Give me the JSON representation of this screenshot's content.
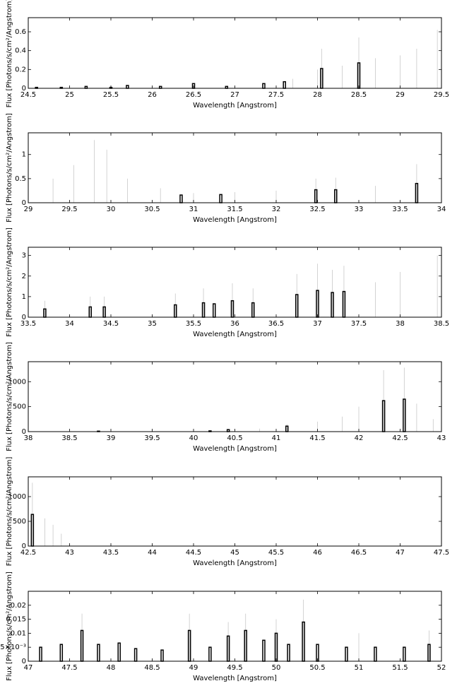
{
  "chart_data": [
    {
      "type": "bar",
      "xlabel": "Wavelength [Angstrom]",
      "ylabel": "Flux [Photons/s/cm²/Angstrom]",
      "xlim": [
        24.5,
        29.5
      ],
      "ylim": [
        0,
        0.75
      ],
      "x_ticks": [
        "24.5",
        "25",
        "25.5",
        "26",
        "26.5",
        "27",
        "27.5",
        "28",
        "28.5",
        "29",
        "29.5"
      ],
      "y_ticks": [
        "0",
        "0.2",
        "0.4",
        "0.6"
      ],
      "bars": [
        {
          "x": 24.6,
          "y": 0.01
        },
        {
          "x": 24.9,
          "y": 0.01
        },
        {
          "x": 25.2,
          "y": 0.02
        },
        {
          "x": 25.5,
          "y": 0.01
        },
        {
          "x": 25.7,
          "y": 0.03
        },
        {
          "x": 26.1,
          "y": 0.02
        },
        {
          "x": 26.5,
          "y": 0.05
        },
        {
          "x": 26.9,
          "y": 0.02
        },
        {
          "x": 27.35,
          "y": 0.05
        },
        {
          "x": 27.6,
          "y": 0.07
        },
        {
          "x": 28.05,
          "y": 0.21
        },
        {
          "x": 28.5,
          "y": 0.27
        }
      ],
      "errors": [
        {
          "x": 27.7,
          "hi": 0.1
        },
        {
          "x": 28.0,
          "hi": 0.2
        },
        {
          "x": 28.05,
          "hi": 0.42
        },
        {
          "x": 28.3,
          "hi": 0.24
        },
        {
          "x": 28.5,
          "hi": 0.54
        },
        {
          "x": 28.7,
          "hi": 0.32
        },
        {
          "x": 29.0,
          "hi": 0.35
        },
        {
          "x": 29.2,
          "hi": 0.42
        },
        {
          "x": 29.45,
          "hi": 0.62
        }
      ]
    },
    {
      "type": "bar",
      "xlabel": "Wavelength [Angstrom]",
      "ylabel": "Flux [Photons/s/cm²/Angstrom]",
      "xlim": [
        29,
        34
      ],
      "ylim": [
        0,
        1.45
      ],
      "x_ticks": [
        "29",
        "29.5",
        "30",
        "30.5",
        "31",
        "31.5",
        "32",
        "32.5",
        "33",
        "33.5",
        "34"
      ],
      "y_ticks": [
        "0",
        "0.5",
        "1"
      ],
      "bars": [
        {
          "x": 30.85,
          "y": 0.16
        },
        {
          "x": 31.33,
          "y": 0.17
        },
        {
          "x": 32.48,
          "y": 0.27
        },
        {
          "x": 32.72,
          "y": 0.27
        },
        {
          "x": 33.7,
          "y": 0.4
        }
      ],
      "errors": [
        {
          "x": 29.0,
          "hi": 0.38
        },
        {
          "x": 29.3,
          "hi": 0.5
        },
        {
          "x": 29.55,
          "hi": 0.78
        },
        {
          "x": 29.8,
          "hi": 1.3
        },
        {
          "x": 29.95,
          "hi": 1.1
        },
        {
          "x": 30.2,
          "hi": 0.5
        },
        {
          "x": 30.6,
          "hi": 0.3
        },
        {
          "x": 31.0,
          "hi": 0.2
        },
        {
          "x": 31.5,
          "hi": 0.22
        },
        {
          "x": 32.0,
          "hi": 0.25
        },
        {
          "x": 32.48,
          "hi": 0.5
        },
        {
          "x": 32.72,
          "hi": 0.52
        },
        {
          "x": 33.2,
          "hi": 0.35
        },
        {
          "x": 33.7,
          "hi": 0.8
        },
        {
          "x": 34.0,
          "hi": 0.42
        }
      ]
    },
    {
      "type": "bar",
      "xlabel": "Wavelength [Angstrom]",
      "ylabel": "Flux [Photons/s/cm²/Angstrom]",
      "xlim": [
        33.5,
        38.5
      ],
      "ylim": [
        0,
        3.4
      ],
      "x_ticks": [
        "33.5",
        "34",
        "34.5",
        "35",
        "35.5",
        "36",
        "36.5",
        "37",
        "37.5",
        "38",
        "38.5"
      ],
      "y_ticks": [
        "0",
        "1",
        "2",
        "3"
      ],
      "bars": [
        {
          "x": 33.7,
          "y": 0.4
        },
        {
          "x": 34.25,
          "y": 0.5
        },
        {
          "x": 34.42,
          "y": 0.5
        },
        {
          "x": 35.28,
          "y": 0.6
        },
        {
          "x": 35.62,
          "y": 0.7
        },
        {
          "x": 35.75,
          "y": 0.65
        },
        {
          "x": 35.97,
          "y": 0.8
        },
        {
          "x": 36.22,
          "y": 0.7
        },
        {
          "x": 36.75,
          "y": 1.1
        },
        {
          "x": 37.0,
          "y": 1.3
        },
        {
          "x": 37.18,
          "y": 1.2
        },
        {
          "x": 37.32,
          "y": 1.25
        }
      ],
      "errors": [
        {
          "x": 33.7,
          "hi": 0.8
        },
        {
          "x": 34.25,
          "hi": 1.0
        },
        {
          "x": 34.42,
          "hi": 1.0
        },
        {
          "x": 35.28,
          "hi": 1.15
        },
        {
          "x": 35.62,
          "hi": 1.4
        },
        {
          "x": 35.97,
          "hi": 1.65
        },
        {
          "x": 36.22,
          "hi": 1.4
        },
        {
          "x": 36.75,
          "hi": 2.1
        },
        {
          "x": 37.0,
          "hi": 2.6
        },
        {
          "x": 37.18,
          "hi": 2.3
        },
        {
          "x": 37.32,
          "hi": 2.5
        },
        {
          "x": 37.7,
          "hi": 1.7
        },
        {
          "x": 38.0,
          "hi": 2.2
        },
        {
          "x": 38.45,
          "hi": 3.0
        }
      ]
    },
    {
      "type": "bar",
      "xlabel": "Wavelength [Angstrom]",
      "ylabel": "Flux [Photons/s/cm²/Angstrom]",
      "xlim": [
        38,
        43
      ],
      "ylim": [
        0,
        1400
      ],
      "x_ticks": [
        "38",
        "38.5",
        "39",
        "39.5",
        "40",
        "40.5",
        "41",
        "41.5",
        "42",
        "42.5",
        "43"
      ],
      "y_ticks": [
        "0",
        "500",
        "1000"
      ],
      "bars": [
        {
          "x": 38.85,
          "y": 10
        },
        {
          "x": 40.2,
          "y": 15
        },
        {
          "x": 40.42,
          "y": 40
        },
        {
          "x": 41.13,
          "y": 110
        },
        {
          "x": 42.3,
          "y": 620
        },
        {
          "x": 42.55,
          "y": 650
        }
      ],
      "errors": [
        {
          "x": 40.8,
          "hi": 60
        },
        {
          "x": 41.13,
          "hi": 150
        },
        {
          "x": 41.5,
          "hi": 200
        },
        {
          "x": 41.8,
          "hi": 300
        },
        {
          "x": 42.0,
          "hi": 500
        },
        {
          "x": 42.3,
          "hi": 1230
        },
        {
          "x": 42.55,
          "hi": 1280
        },
        {
          "x": 42.7,
          "hi": 560
        },
        {
          "x": 42.9,
          "hi": 250
        }
      ]
    },
    {
      "type": "bar",
      "xlabel": "Wavelength [Angstrom]",
      "ylabel": "Flux [Photons/s/cm²/Angstrom]",
      "xlim": [
        42.5,
        47.5
      ],
      "ylim": [
        0,
        1400
      ],
      "x_ticks": [
        "42.5",
        "43",
        "43.5",
        "44",
        "44.5",
        "45",
        "45.5",
        "46",
        "46.5",
        "47",
        "47.5"
      ],
      "y_ticks": [
        "0",
        "500",
        "1000"
      ],
      "bars": [
        {
          "x": 42.55,
          "y": 640
        }
      ],
      "errors": [
        {
          "x": 42.55,
          "hi": 1280
        },
        {
          "x": 42.7,
          "hi": 560
        },
        {
          "x": 42.8,
          "hi": 430
        },
        {
          "x": 42.9,
          "hi": 250
        }
      ]
    },
    {
      "type": "bar",
      "xlabel": "Wavelength [Angstrom]",
      "ylabel": "Flux [Photons/s/cm²/Angstrom]",
      "xlim": [
        47,
        52
      ],
      "ylim": [
        0,
        0.025
      ],
      "x_ticks": [
        "47",
        "47.5",
        "48",
        "48.5",
        "49",
        "49.5",
        "50",
        "50.5",
        "51",
        "51.5",
        "52"
      ],
      "y_ticks": [
        "0",
        "5×10⁻³",
        "0.01",
        "0.015",
        "0.02"
      ],
      "bars": [
        {
          "x": 47.15,
          "y": 0.005
        },
        {
          "x": 47.4,
          "y": 0.006
        },
        {
          "x": 47.65,
          "y": 0.011
        },
        {
          "x": 47.85,
          "y": 0.006
        },
        {
          "x": 48.1,
          "y": 0.0065
        },
        {
          "x": 48.3,
          "y": 0.0045
        },
        {
          "x": 48.62,
          "y": 0.004
        },
        {
          "x": 48.95,
          "y": 0.011
        },
        {
          "x": 49.2,
          "y": 0.005
        },
        {
          "x": 49.42,
          "y": 0.009
        },
        {
          "x": 49.63,
          "y": 0.011
        },
        {
          "x": 49.85,
          "y": 0.0075
        },
        {
          "x": 50.0,
          "y": 0.01
        },
        {
          "x": 50.15,
          "y": 0.006
        },
        {
          "x": 50.33,
          "y": 0.014
        },
        {
          "x": 50.5,
          "y": 0.006
        },
        {
          "x": 50.85,
          "y": 0.005
        },
        {
          "x": 51.2,
          "y": 0.005
        },
        {
          "x": 51.55,
          "y": 0.005
        },
        {
          "x": 51.85,
          "y": 0.006
        }
      ],
      "errors": [
        {
          "x": 47.65,
          "hi": 0.017
        },
        {
          "x": 48.95,
          "hi": 0.017
        },
        {
          "x": 49.42,
          "hi": 0.014
        },
        {
          "x": 49.63,
          "hi": 0.017
        },
        {
          "x": 50.0,
          "hi": 0.015
        },
        {
          "x": 50.33,
          "hi": 0.022
        },
        {
          "x": 51.0,
          "hi": 0.01
        },
        {
          "x": 51.85,
          "hi": 0.011
        }
      ]
    }
  ]
}
